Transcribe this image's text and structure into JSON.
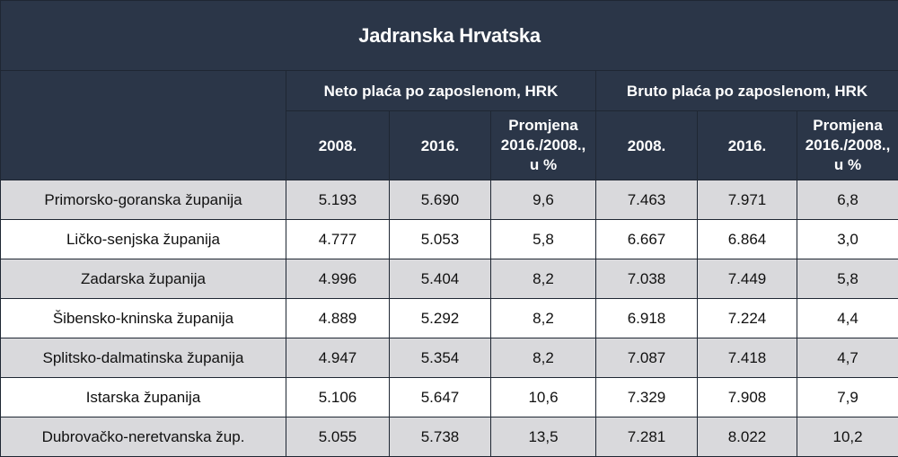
{
  "table": {
    "title": "Jadranska Hrvatska",
    "groups": [
      "Neto plaća po zaposlenom, HRK",
      "Bruto plaća po zaposlenom, HRK"
    ],
    "subheaders": {
      "y2008": "2008.",
      "y2016": "2016.",
      "change_line1": "Promjena",
      "change_line2": "2016./2008.,",
      "change_line3": "u %"
    },
    "rows": [
      {
        "name": "Primorsko-goranska županija",
        "neto_2008": "5.193",
        "neto_2016": "5.690",
        "neto_change": "9,6",
        "bruto_2008": "7.463",
        "bruto_2016": "7.971",
        "bruto_change": "6,8"
      },
      {
        "name": "Ličko-senjska županija",
        "neto_2008": "4.777",
        "neto_2016": "5.053",
        "neto_change": "5,8",
        "bruto_2008": "6.667",
        "bruto_2016": "6.864",
        "bruto_change": "3,0"
      },
      {
        "name": "Zadarska županija",
        "neto_2008": "4.996",
        "neto_2016": "5.404",
        "neto_change": "8,2",
        "bruto_2008": "7.038",
        "bruto_2016": "7.449",
        "bruto_change": "5,8"
      },
      {
        "name": "Šibensko-kninska županija",
        "neto_2008": "4.889",
        "neto_2016": "5.292",
        "neto_change": "8,2",
        "bruto_2008": "6.918",
        "bruto_2016": "7.224",
        "bruto_change": "4,4"
      },
      {
        "name": "Splitsko-dalmatinska županija",
        "neto_2008": "4.947",
        "neto_2016": "5.354",
        "neto_change": "8,2",
        "bruto_2008": "7.087",
        "bruto_2016": "7.418",
        "bruto_change": "4,7"
      },
      {
        "name": "Istarska županija",
        "neto_2008": "5.106",
        "neto_2016": "5.647",
        "neto_change": "10,6",
        "bruto_2008": "7.329",
        "bruto_2016": "7.908",
        "bruto_change": "7,9"
      },
      {
        "name": "Dubrovačko-neretvanska žup.",
        "neto_2008": "5.055",
        "neto_2016": "5.738",
        "neto_change": "13,5",
        "bruto_2008": "7.281",
        "bruto_2016": "8.022",
        "bruto_change": "10,2"
      }
    ],
    "colors": {
      "header_bg": "#2b3648",
      "header_text": "#ffffff",
      "row_stripe": "#d9d9dc",
      "row_plain": "#ffffff",
      "border": "#1f2733"
    }
  }
}
